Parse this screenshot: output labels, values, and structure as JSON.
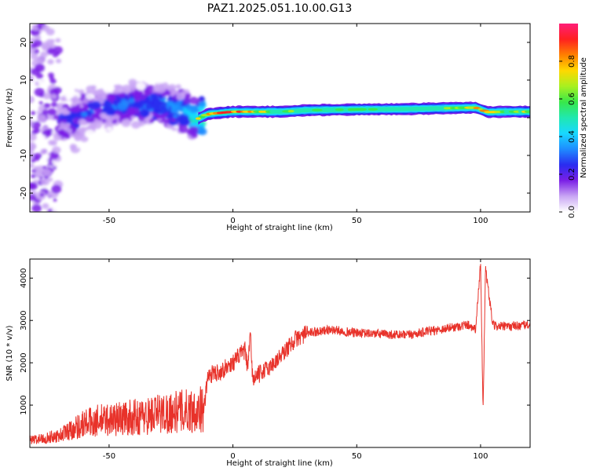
{
  "title": "PAZ1.2025.051.10.00.G13",
  "chart_data": [
    {
      "type": "heatmap",
      "xlabel": "Height of straight line (km)",
      "ylabel": "Frequency (Hz)",
      "xlim": [
        -82,
        120
      ],
      "ylim": [
        -25,
        25
      ],
      "xticks": [
        -50,
        0,
        50,
        100
      ],
      "yticks": [
        -20,
        -10,
        0,
        10,
        20
      ],
      "colorbar": {
        "label": "Normalized spectral amplitude",
        "range": [
          0,
          1
        ],
        "ticks": [
          "0.0",
          "0.2",
          "0.4",
          "0.6",
          "0.8"
        ]
      },
      "colormap": [
        "#ffffff",
        "#c9a6f4",
        "#7b1fe6",
        "#2a2cf0",
        "#1e8cff",
        "#18d8ff",
        "#20e8b0",
        "#38e84a",
        "#a8f020",
        "#ffd800",
        "#ff8000",
        "#ff2020",
        "#ff1e78"
      ],
      "ridge": [
        {
          "x": -70,
          "f": -1.5,
          "a": 0.25
        },
        {
          "x": -60,
          "f": 1.0,
          "a": 0.28
        },
        {
          "x": -50,
          "f": 3.0,
          "a": 0.32
        },
        {
          "x": -40,
          "f": 4.0,
          "a": 0.34
        },
        {
          "x": -30,
          "f": 3.5,
          "a": 0.38
        },
        {
          "x": -20,
          "f": 2.0,
          "a": 0.42
        },
        {
          "x": -15,
          "f": -0.5,
          "a": 0.55
        },
        {
          "x": -10,
          "f": 1.0,
          "a": 0.9
        },
        {
          "x": 0,
          "f": 1.6,
          "a": 0.95
        },
        {
          "x": 10,
          "f": 1.6,
          "a": 0.7
        },
        {
          "x": 20,
          "f": 1.6,
          "a": 0.55
        },
        {
          "x": 30,
          "f": 2.0,
          "a": 0.5
        },
        {
          "x": 50,
          "f": 2.2,
          "a": 0.5
        },
        {
          "x": 70,
          "f": 2.3,
          "a": 0.5
        },
        {
          "x": 90,
          "f": 2.6,
          "a": 0.6
        },
        {
          "x": 98,
          "f": 2.7,
          "a": 0.85
        },
        {
          "x": 103,
          "f": 1.5,
          "a": 0.8
        },
        {
          "x": 110,
          "f": 1.6,
          "a": 0.6
        },
        {
          "x": 120,
          "f": 1.6,
          "a": 0.7
        }
      ]
    },
    {
      "type": "line",
      "xlabel": "Height of straight line (km)",
      "ylabel": "SNR (10 * v/v)",
      "xlim": [
        -82,
        120
      ],
      "ylim": [
        0,
        4450
      ],
      "xticks": [
        -50,
        0,
        50,
        100
      ],
      "yticks": [
        1000,
        2000,
        3000,
        4000
      ],
      "color": "#e8322a",
      "x": [
        -82,
        -75,
        -70,
        -65,
        -60,
        -55,
        -50,
        -45,
        -40,
        -35,
        -30,
        -25,
        -20,
        -15,
        -12,
        -10,
        -5,
        0,
        3,
        5,
        6,
        7,
        8,
        10,
        12,
        15,
        20,
        25,
        30,
        35,
        40,
        50,
        60,
        70,
        80,
        90,
        95,
        98,
        100,
        101,
        102,
        105,
        110,
        120
      ],
      "y": [
        150,
        200,
        250,
        380,
        500,
        550,
        580,
        600,
        620,
        650,
        700,
        720,
        750,
        780,
        800,
        1700,
        1800,
        2000,
        2200,
        2300,
        1800,
        2700,
        1600,
        1700,
        1800,
        1900,
        2200,
        2550,
        2700,
        2750,
        2780,
        2700,
        2680,
        2650,
        2750,
        2850,
        2900,
        2800,
        4350,
        900,
        4200,
        2880,
        2850,
        2900
      ]
    }
  ]
}
